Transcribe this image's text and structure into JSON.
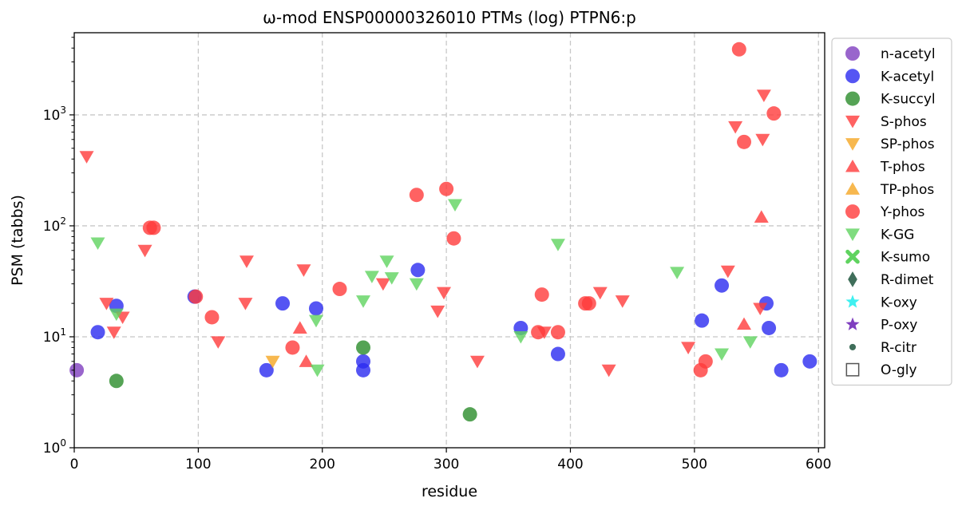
{
  "chart_data": {
    "type": "scatter",
    "title": "ω-mod ENSP00000326010 PTMs (log) PTPN6:p",
    "xlabel": "residue",
    "ylabel": "PSM (tabbs)",
    "xlim": [
      0,
      605
    ],
    "ylim": [
      1,
      5500
    ],
    "yscale": "log",
    "x_ticks": [
      0,
      100,
      200,
      300,
      400,
      500,
      600
    ],
    "y_ticks": [
      {
        "value": 1,
        "label": "10^0"
      },
      {
        "value": 10,
        "label": "10^1"
      },
      {
        "value": 100,
        "label": "10^2"
      },
      {
        "value": 1000,
        "label": "10^3"
      }
    ],
    "grid": true,
    "legend_position": "outside-right",
    "series": [
      {
        "name": "n-acetyl",
        "marker": "circle",
        "color": "#7f3fbf",
        "points": [
          [
            2,
            5
          ]
        ]
      },
      {
        "name": "K-acetyl",
        "marker": "circle",
        "color": "#2b2bf0",
        "points": [
          [
            19,
            11
          ],
          [
            34,
            19
          ],
          [
            97,
            23
          ],
          [
            155,
            5
          ],
          [
            168,
            20
          ],
          [
            195,
            18
          ],
          [
            233,
            6
          ],
          [
            233,
            5
          ],
          [
            277,
            40
          ],
          [
            360,
            12
          ],
          [
            390,
            7
          ],
          [
            506,
            14
          ],
          [
            522,
            29
          ],
          [
            558,
            20
          ],
          [
            560,
            12
          ],
          [
            570,
            5
          ],
          [
            593,
            6
          ]
        ]
      },
      {
        "name": "K-succyl",
        "marker": "circle",
        "color": "#2a8c2a",
        "points": [
          [
            34,
            4
          ],
          [
            233,
            8
          ],
          [
            319,
            2
          ]
        ]
      },
      {
        "name": "S-phos",
        "marker": "triangle-down",
        "color": "#ff3b3b",
        "points": [
          [
            10,
            420
          ],
          [
            26,
            20
          ],
          [
            32,
            11
          ],
          [
            39,
            15
          ],
          [
            57,
            60
          ],
          [
            116,
            9
          ],
          [
            139,
            48
          ],
          [
            138,
            20
          ],
          [
            185,
            40
          ],
          [
            249,
            30
          ],
          [
            293,
            17
          ],
          [
            298,
            25
          ],
          [
            325,
            6
          ],
          [
            379,
            11
          ],
          [
            424,
            25
          ],
          [
            431,
            5
          ],
          [
            442,
            21
          ],
          [
            495,
            8
          ],
          [
            527,
            39
          ],
          [
            533,
            780
          ],
          [
            555,
            600
          ],
          [
            556,
            1500
          ],
          [
            553,
            18
          ]
        ]
      },
      {
        "name": "SP-phos",
        "marker": "triangle-down",
        "color": "#f5a623",
        "points": [
          [
            160,
            6
          ]
        ]
      },
      {
        "name": "T-phos",
        "marker": "triangle-up",
        "color": "#ff3b3b",
        "points": [
          [
            182,
            12
          ],
          [
            187,
            6
          ],
          [
            540,
            13
          ],
          [
            554,
            120
          ]
        ]
      },
      {
        "name": "TP-phos",
        "marker": "triangle-up",
        "color": "#f5a623",
        "points": []
      },
      {
        "name": "Y-phos",
        "marker": "circle",
        "color": "#ff3b3b",
        "points": [
          [
            61,
            96
          ],
          [
            64,
            96
          ],
          [
            98,
            23
          ],
          [
            111,
            15
          ],
          [
            176,
            8
          ],
          [
            214,
            27
          ],
          [
            276,
            190
          ],
          [
            300,
            215
          ],
          [
            306,
            77
          ],
          [
            374,
            11
          ],
          [
            377,
            24
          ],
          [
            390,
            11
          ],
          [
            412,
            20
          ],
          [
            415,
            20
          ],
          [
            505,
            5
          ],
          [
            509,
            6
          ],
          [
            536,
            3900
          ],
          [
            540,
            570
          ],
          [
            564,
            1030
          ]
        ]
      },
      {
        "name": "K-GG",
        "marker": "triangle-down",
        "color": "#5fd35f",
        "points": [
          [
            19,
            70
          ],
          [
            34,
            16
          ],
          [
            196,
            5
          ],
          [
            195,
            14
          ],
          [
            233,
            21
          ],
          [
            240,
            35
          ],
          [
            252,
            48
          ],
          [
            256,
            34
          ],
          [
            276,
            30
          ],
          [
            307,
            155
          ],
          [
            360,
            10
          ],
          [
            390,
            68
          ],
          [
            486,
            38
          ],
          [
            522,
            7
          ],
          [
            545,
            9
          ]
        ]
      },
      {
        "name": "K-sumo",
        "marker": "x",
        "color": "#5fd35f",
        "points": []
      },
      {
        "name": "R-dimet",
        "marker": "diamond",
        "color": "#3f6e5a",
        "points": []
      },
      {
        "name": "K-oxy",
        "marker": "star",
        "color": "#3ff0f0",
        "points": []
      },
      {
        "name": "P-oxy",
        "marker": "star",
        "color": "#7f3fbf",
        "points": []
      },
      {
        "name": "R-citr",
        "marker": "small-circle",
        "color": "#3f6e5a",
        "points": []
      },
      {
        "name": "O-gly",
        "marker": "square-open",
        "color": "#555555",
        "points": []
      }
    ]
  }
}
